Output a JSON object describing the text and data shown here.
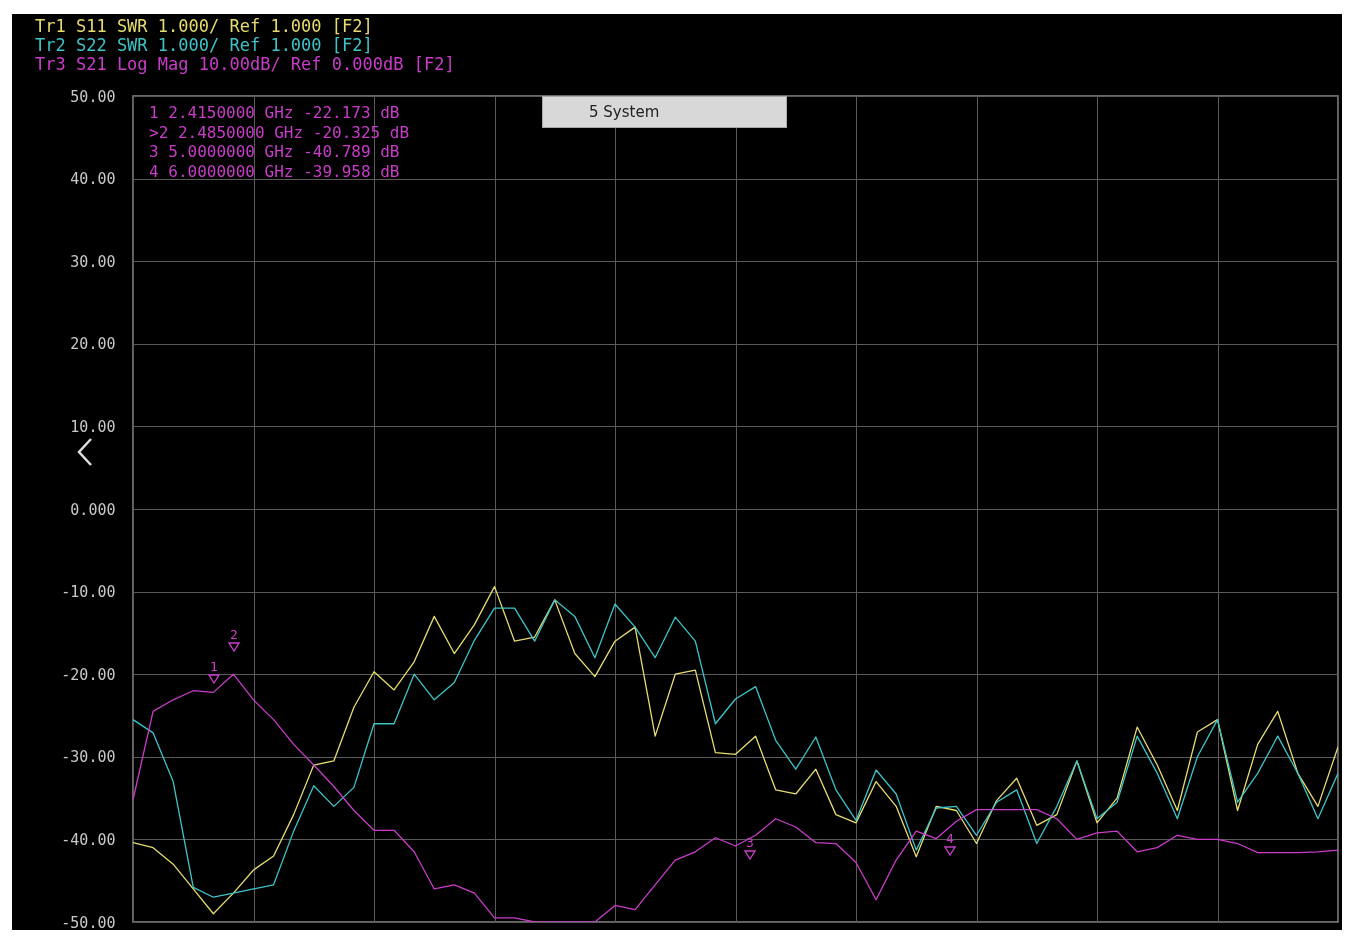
{
  "chart_data": {
    "type": "line",
    "categories": [
      null,
      null,
      null,
      null,
      null,
      null,
      null,
      null,
      null,
      null,
      null,
      null,
      null,
      null,
      null,
      null,
      null,
      null,
      null,
      null,
      null,
      null,
      null,
      null,
      null,
      null,
      null,
      null,
      null,
      null,
      null,
      null,
      null,
      null,
      null,
      null,
      null,
      null,
      null,
      null,
      null,
      null,
      null,
      null,
      null,
      null,
      null,
      null,
      null,
      null,
      null,
      null,
      null,
      null,
      null,
      null,
      null,
      null,
      null,
      null,
      null
    ],
    "ylim": [
      -50,
      50
    ],
    "yticks": [
      {
        "value": 50,
        "label": "50.00"
      },
      {
        "value": 40,
        "label": "40.00"
      },
      {
        "value": 30,
        "label": "30.00"
      },
      {
        "value": 20,
        "label": "20.00"
      },
      {
        "value": 10,
        "label": "10.00"
      },
      {
        "value": 0,
        "label": "0.000"
      },
      {
        "value": -10,
        "label": "-10.00"
      },
      {
        "value": -20,
        "label": "-20.00"
      },
      {
        "value": -30,
        "label": "-30.00"
      },
      {
        "value": -40,
        "label": "-40.00"
      },
      {
        "value": -50,
        "label": "-50.00"
      }
    ],
    "grid": true,
    "tick_labels": "y",
    "series": [
      {
        "name": "Tr1 S11 SWR 1.000/ Ref 1.000 [F2]",
        "color": "#e6dc6e",
        "values": [
          -40.4,
          -41,
          -43,
          -46,
          -49,
          -46.5,
          -43.7,
          -42,
          -37,
          -31,
          -30.5,
          -24,
          -19.7,
          -21.9,
          -18.5,
          -13,
          -17.5,
          -14,
          -9.4,
          -16,
          -15.5,
          -11,
          -17.5,
          -20.3,
          -16,
          -14.3,
          -27.5,
          -20,
          -19.5,
          -29.5,
          -29.7,
          -27.5,
          -34,
          -34.5,
          -31.5,
          -37,
          -38,
          -33,
          -36,
          -42.1,
          -36,
          -36.5,
          -40.5,
          -35.3,
          -32.6,
          -38.3,
          -37,
          -30.5,
          -38,
          -35,
          -26.4,
          -31,
          -36.5,
          -27,
          -25.5,
          -36.5,
          -28.5,
          -24.5,
          -32,
          -36,
          -28.8
        ]
      },
      {
        "name": "Tr2 S22 SWR 1.000/ Ref 1.000 [F2]",
        "color": "#3cc4c8",
        "values": [
          -25.5,
          -27.1,
          -33,
          -45.8,
          -47,
          -46.5,
          -46,
          -45.5,
          -39,
          -33.5,
          -36,
          -33.7,
          -26,
          -26,
          -20,
          -23.1,
          -21,
          -15.9,
          -12,
          -12,
          -16,
          -11,
          -13,
          -18,
          -11.5,
          -14.3,
          -18,
          -13.1,
          -16,
          -26,
          -23,
          -21.5,
          -28,
          -31.5,
          -27.6,
          -34,
          -37.7,
          -31.6,
          -34.5,
          -41.3,
          -36.2,
          -36,
          -39.5,
          -35.5,
          -34,
          -40.5,
          -36,
          -30.5,
          -37.5,
          -35.5,
          -27.5,
          -32,
          -37.5,
          -30,
          -25.5,
          -35.5,
          -32,
          -27.5,
          -32,
          -37.5,
          -32
        ]
      },
      {
        "name": "Tr3 S21 Log Mag 10.00dB/ Ref 0.000dB [F2]",
        "color": "#c83cc8",
        "values": [
          -35.2,
          -24.5,
          -23.1,
          -22,
          -22.2,
          -20,
          -23.1,
          -25.5,
          -28.5,
          -31,
          -33.6,
          -36.5,
          -38.9,
          -38.9,
          -41.5,
          -46,
          -45.5,
          -46.5,
          -49.5,
          -49.5,
          -50,
          -50,
          -50,
          -50,
          -48,
          -48.5,
          -45.5,
          -42.5,
          -41.5,
          -39.8,
          -40.8,
          -39.5,
          -37.5,
          -38.5,
          -40.4,
          -40.5,
          -42.8,
          -47.3,
          -42.5,
          -39,
          -39.9,
          -37.8,
          -36.4,
          -36.4,
          -36.4,
          -36.4,
          -37.5,
          -40,
          -39.2,
          -39,
          -41.5,
          -41,
          -39.5,
          -40,
          -40,
          -40.5,
          -41.6,
          -41.6,
          -41.6,
          -41.5,
          -41.3
        ]
      }
    ],
    "annotations": [
      "1  2.4150000 GHz -22.173 dB",
      ">2  2.4850000 GHz -20.325 dB",
      "3  5.0000000 GHz -40.789 dB",
      "4  6.0000000 GHz -39.958 dB",
      "5 System",
      "1",
      "2",
      "3",
      "4"
    ]
  }
}
